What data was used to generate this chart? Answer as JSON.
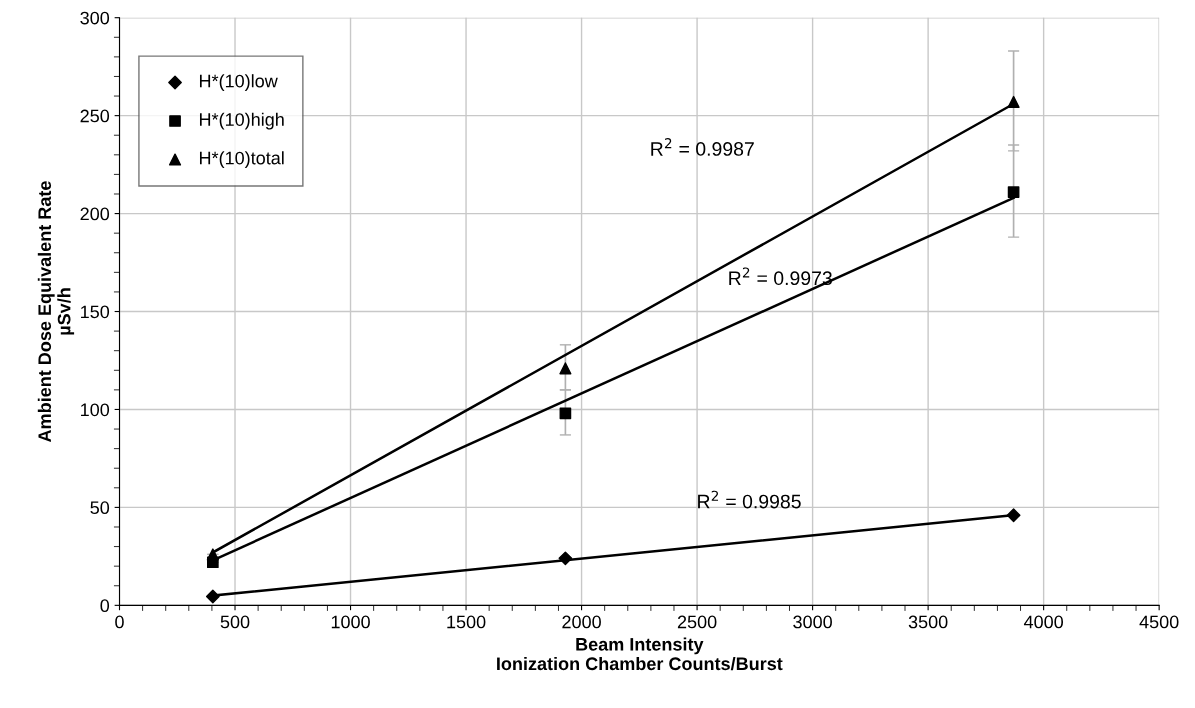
{
  "chart_data": {
    "type": "scatter",
    "xlabel": "Beam Intensity\nIonization Chamber Counts/Burst",
    "ylabel": "Ambient Dose Equivalent Rate\nµSv/h",
    "xlim": [
      0,
      4500
    ],
    "xticks": [
      0,
      500,
      1000,
      1500,
      2000,
      2500,
      3000,
      3500,
      4000,
      4500
    ],
    "ylim": [
      0,
      300
    ],
    "yticks": [
      0,
      50,
      100,
      150,
      200,
      250,
      300
    ],
    "grid": true,
    "legend": "top left",
    "series": [
      {
        "name": "H*(10)low",
        "color": "#000000",
        "marker": "diamond",
        "x": [
          404,
          1930,
          3870
        ],
        "values": [
          4.5,
          24,
          46
        ]
      },
      {
        "name": "H*(10)high",
        "color": "#000000",
        "marker": "square",
        "x": [
          404,
          1930,
          3870
        ],
        "values": [
          22,
          98,
          211
        ],
        "errors": [
          null,
          [
            87,
            110
          ],
          [
            188,
            235
          ]
        ]
      },
      {
        "name": "H*(10)total",
        "color": "#000000",
        "marker": "triangle",
        "x": [
          404,
          1930,
          3870
        ],
        "values": [
          26,
          121,
          257
        ],
        "errors": [
          null,
          [
            110,
            133
          ],
          [
            232,
            283
          ]
        ]
      },
      {
        "type": "line",
        "color": "#000000",
        "marker": "none",
        "x": [
          404,
          3870
        ],
        "values": [
          5,
          46
        ]
      },
      {
        "type": "line",
        "color": "#000000",
        "marker": "none",
        "x": [
          404,
          3870
        ],
        "values": [
          23,
          208
        ]
      },
      {
        "type": "line",
        "color": "#000000",
        "marker": "none",
        "x": [
          404,
          3870
        ],
        "values": [
          27,
          256
        ]
      }
    ],
    "annotations": [
      "R$^{2}$ = 0.9987",
      "R$^{2}$ = 0.9973",
      "R$^{2}$ = 0.9985"
    ]
  }
}
